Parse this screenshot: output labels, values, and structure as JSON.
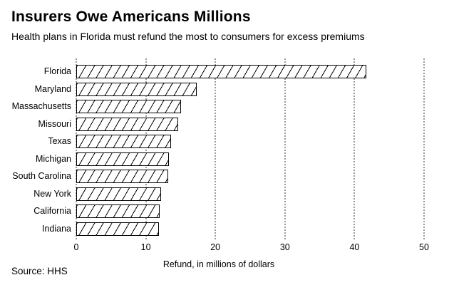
{
  "header": {
    "title": "Insurers Owe Americans Millions",
    "subtitle": "Health plans in Florida must refund the most to consumers for excess premiums"
  },
  "chart_data": {
    "type": "bar",
    "orientation": "horizontal",
    "title": "Insurers Owe Americans Millions",
    "subtitle": "Health plans in Florida must refund the most to consumers for excess premiums",
    "categories": [
      "Florida",
      "Maryland",
      "Massachusetts",
      "Missouri",
      "Texas",
      "Michigan",
      "South Carolina",
      "New York",
      "California",
      "Indiana"
    ],
    "values": [
      41.7,
      17.3,
      15.1,
      14.7,
      13.6,
      13.3,
      13.2,
      12.2,
      12.0,
      11.9
    ],
    "xlabel": "Refund, in millions of dollars",
    "xlim": [
      0,
      50
    ],
    "xticks": [
      0,
      10,
      20,
      30,
      40,
      50
    ],
    "grid": "vertical dotted gridlines at each x tick",
    "legend": "none",
    "bar_fill": "#ffffff",
    "bar_border": "#000000",
    "bar_hatch": "/",
    "gridline_color": "#9a9a9a",
    "text_color": "#000000"
  },
  "footer": {
    "source": "Source: HHS"
  }
}
